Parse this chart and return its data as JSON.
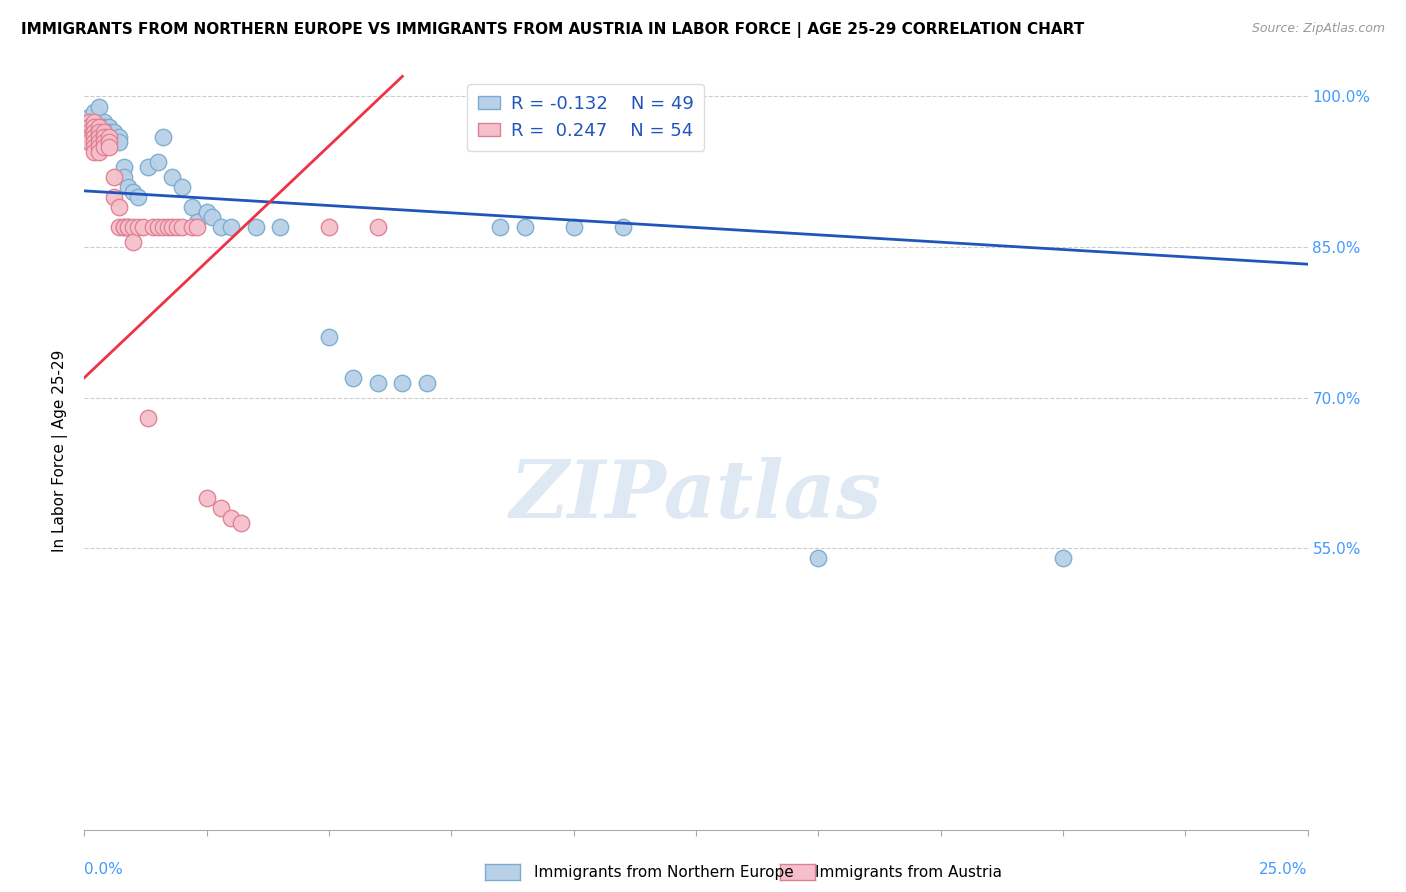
{
  "title": "IMMIGRANTS FROM NORTHERN EUROPE VS IMMIGRANTS FROM AUSTRIA IN LABOR FORCE | AGE 25-29 CORRELATION CHART",
  "source": "Source: ZipAtlas.com",
  "ylabel": "In Labor Force | Age 25-29",
  "blue_R": -0.132,
  "blue_N": 49,
  "pink_R": 0.247,
  "pink_N": 54,
  "blue_color": "#b8d0e8",
  "blue_edge": "#7aadcf",
  "pink_color": "#f5c0cc",
  "pink_edge": "#e08090",
  "blue_line_color": "#2255bb",
  "pink_line_color": "#ee3344",
  "watermark": "ZIPatlas",
  "legend_label_blue": "Immigrants from Northern Europe",
  "legend_label_pink": "Immigrants from Austria",
  "blue_scatter_x": [
    0.001,
    0.001,
    0.002,
    0.002,
    0.003,
    0.003,
    0.003,
    0.003,
    0.004,
    0.004,
    0.004,
    0.005,
    0.005,
    0.005,
    0.005,
    0.006,
    0.006,
    0.006,
    0.007,
    0.007,
    0.008,
    0.008,
    0.009,
    0.01,
    0.011,
    0.013,
    0.015,
    0.016,
    0.018,
    0.02,
    0.022,
    0.023,
    0.025,
    0.026,
    0.028,
    0.03,
    0.035,
    0.04,
    0.05,
    0.055,
    0.06,
    0.065,
    0.07,
    0.085,
    0.09,
    0.1,
    0.11,
    0.15,
    0.2
  ],
  "blue_scatter_y": [
    0.96,
    0.98,
    0.97,
    0.985,
    0.975,
    0.97,
    0.965,
    0.99,
    0.975,
    0.97,
    0.96,
    0.97,
    0.965,
    0.96,
    0.955,
    0.955,
    0.96,
    0.965,
    0.96,
    0.955,
    0.93,
    0.92,
    0.91,
    0.905,
    0.9,
    0.93,
    0.935,
    0.96,
    0.92,
    0.91,
    0.89,
    0.875,
    0.885,
    0.88,
    0.87,
    0.87,
    0.87,
    0.87,
    0.76,
    0.72,
    0.715,
    0.715,
    0.715,
    0.87,
    0.87,
    0.87,
    0.87,
    0.54,
    0.54
  ],
  "pink_scatter_x": [
    0.001,
    0.001,
    0.001,
    0.001,
    0.001,
    0.001,
    0.002,
    0.002,
    0.002,
    0.002,
    0.002,
    0.002,
    0.002,
    0.003,
    0.003,
    0.003,
    0.003,
    0.003,
    0.003,
    0.004,
    0.004,
    0.004,
    0.004,
    0.005,
    0.005,
    0.005,
    0.006,
    0.006,
    0.007,
    0.007,
    0.008,
    0.008,
    0.009,
    0.009,
    0.01,
    0.01,
    0.011,
    0.012,
    0.013,
    0.014,
    0.015,
    0.016,
    0.017,
    0.018,
    0.019,
    0.02,
    0.022,
    0.023,
    0.025,
    0.028,
    0.03,
    0.032,
    0.05,
    0.06
  ],
  "pink_scatter_y": [
    0.975,
    0.97,
    0.965,
    0.96,
    0.958,
    0.955,
    0.975,
    0.97,
    0.965,
    0.96,
    0.955,
    0.95,
    0.945,
    0.97,
    0.965,
    0.96,
    0.955,
    0.95,
    0.945,
    0.965,
    0.96,
    0.955,
    0.95,
    0.96,
    0.955,
    0.95,
    0.92,
    0.9,
    0.89,
    0.87,
    0.87,
    0.87,
    0.87,
    0.87,
    0.87,
    0.855,
    0.87,
    0.87,
    0.68,
    0.87,
    0.87,
    0.87,
    0.87,
    0.87,
    0.87,
    0.87,
    0.87,
    0.87,
    0.6,
    0.59,
    0.58,
    0.575,
    0.87,
    0.87
  ],
  "blue_trend_x": [
    0.0,
    0.25
  ],
  "blue_trend_y": [
    0.906,
    0.833
  ],
  "pink_trend_x": [
    0.0,
    0.065
  ],
  "pink_trend_y": [
    0.72,
    1.02
  ],
  "xmin": 0.0,
  "xmax": 0.25,
  "ymin": 0.27,
  "ymax": 1.025,
  "yticks": [
    0.55,
    0.7,
    0.85,
    1.0
  ],
  "ytick_labels": [
    "55.0%",
    "70.0%",
    "85.0%",
    "100.0%"
  ]
}
